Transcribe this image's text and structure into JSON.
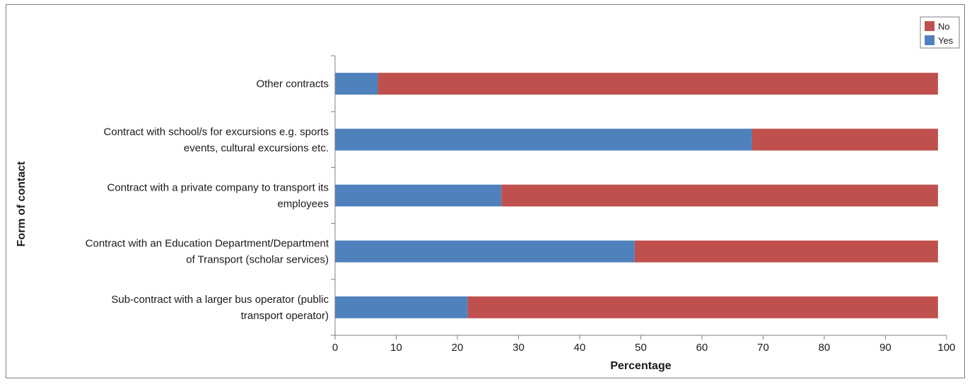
{
  "chart_data": {
    "type": "bar",
    "orientation": "horizontal",
    "stacked": true,
    "categories": [
      "Sub-contract with a larger bus operator (public transport operator)",
      "Contract with an Education Department/Department of Transport (scholar services)",
      "Contract with a private company to transport its employees",
      "Contract with school/s for excursions e.g. sports events, cultural excursions etc.",
      "Other contracts"
    ],
    "category_label_lines": [
      [
        "Sub-contract with a larger bus operator (public",
        "transport operator)"
      ],
      [
        "Contract with an Education Department/Department",
        "of Transport (scholar services)"
      ],
      [
        "Contract with a private company to transport its",
        "employees"
      ],
      [
        "Contract with school/s for excursions e.g. sports",
        "events, cultural excursions etc."
      ],
      [
        "Other contracts"
      ]
    ],
    "series": [
      {
        "name": "Yes",
        "color": "#4f81bd",
        "values": [
          21.7,
          49.0,
          27.2,
          68.2,
          7.0
        ]
      },
      {
        "name": "No",
        "color": "#c0504d",
        "values": [
          76.9,
          49.6,
          71.4,
          30.4,
          91.6
        ]
      }
    ],
    "xlabel": "Percentage",
    "ylabel": "Form of contact",
    "xlim": [
      0,
      100
    ],
    "xticks": [
      0,
      10,
      20,
      30,
      40,
      50,
      60,
      70,
      80,
      90,
      100
    ],
    "grid": false,
    "legend_position": "top-right"
  }
}
